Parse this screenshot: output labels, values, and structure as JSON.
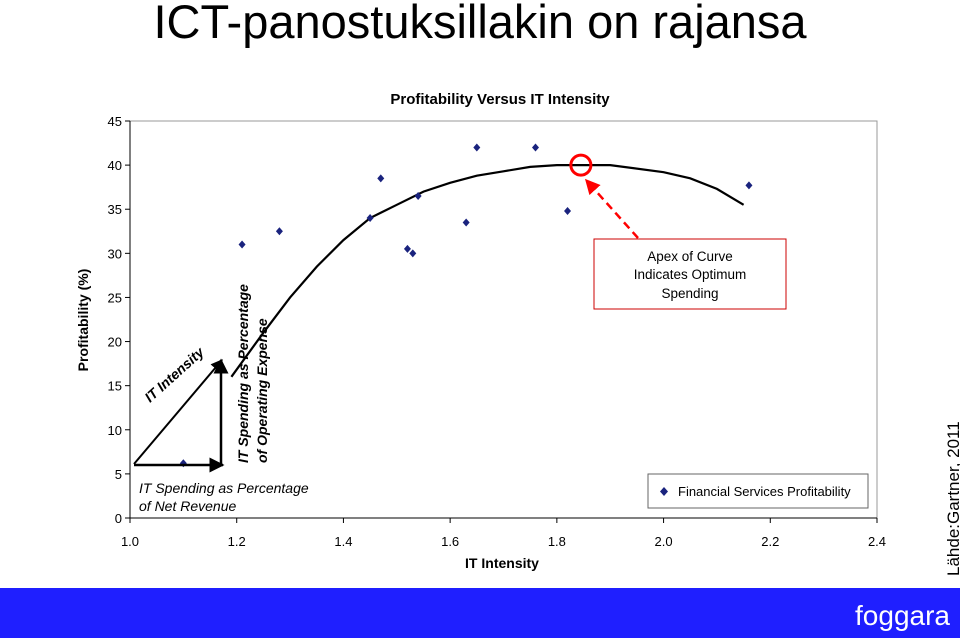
{
  "slide": {
    "title": "ICT-panostuksillakin on rajansa",
    "source": "Lähde:Gartner, 2011",
    "brand": "foggara"
  },
  "colors": {
    "footer_bar": "#1f1fff",
    "marker": "#1a237e",
    "apex_highlight": "#ff0000"
  },
  "chart_data": {
    "type": "scatter",
    "title": "Profitability Versus IT Intensity",
    "xlabel": "IT Intensity",
    "ylabel": "Profitability (%)",
    "xlim": [
      1.0,
      2.4
    ],
    "ylim": [
      0,
      45
    ],
    "x_ticks": [
      "1.0",
      "1.2",
      "1.4",
      "1.6",
      "1.8",
      "2.0",
      "2.2",
      "2.4"
    ],
    "y_ticks": [
      "0",
      "5",
      "10",
      "15",
      "20",
      "25",
      "30",
      "35",
      "40",
      "45"
    ],
    "grid": false,
    "legend_position": "bottom-right",
    "series": [
      {
        "name": "Financial Services Profitability",
        "marker": "diamond",
        "points": [
          {
            "x": 1.1,
            "y": 6.2
          },
          {
            "x": 1.21,
            "y": 31.0
          },
          {
            "x": 1.28,
            "y": 32.5
          },
          {
            "x": 1.45,
            "y": 34.0
          },
          {
            "x": 1.47,
            "y": 38.5
          },
          {
            "x": 1.52,
            "y": 30.5
          },
          {
            "x": 1.53,
            "y": 30.0
          },
          {
            "x": 1.54,
            "y": 36.5
          },
          {
            "x": 1.63,
            "y": 33.5
          },
          {
            "x": 1.65,
            "y": 42.0
          },
          {
            "x": 1.76,
            "y": 42.0
          },
          {
            "x": 1.82,
            "y": 34.8
          },
          {
            "x": 2.16,
            "y": 37.7
          }
        ]
      }
    ],
    "trend_curve": {
      "points": [
        {
          "x": 1.19,
          "y": 16.0
        },
        {
          "x": 1.25,
          "y": 21.0
        },
        {
          "x": 1.3,
          "y": 25.0
        },
        {
          "x": 1.35,
          "y": 28.5
        },
        {
          "x": 1.4,
          "y": 31.5
        },
        {
          "x": 1.45,
          "y": 34.0
        },
        {
          "x": 1.5,
          "y": 35.5
        },
        {
          "x": 1.55,
          "y": 37.0
        },
        {
          "x": 1.6,
          "y": 38.0
        },
        {
          "x": 1.65,
          "y": 38.8
        },
        {
          "x": 1.7,
          "y": 39.3
        },
        {
          "x": 1.75,
          "y": 39.8
        },
        {
          "x": 1.8,
          "y": 40.0
        },
        {
          "x": 1.9,
          "y": 40.0
        },
        {
          "x": 2.0,
          "y": 39.2
        },
        {
          "x": 2.05,
          "y": 38.5
        },
        {
          "x": 2.1,
          "y": 37.3
        },
        {
          "x": 2.15,
          "y": 35.5
        }
      ]
    },
    "apex": {
      "x": 1.845,
      "y": 40.0
    },
    "annotations": {
      "apex_lines": [
        "Apex of Curve",
        "Indicates Optimum",
        "Spending"
      ],
      "it_intensity": "IT Intensity",
      "vertical_lines": [
        "IT Spending as Percentage",
        "of Operating Expense"
      ],
      "horizontal_lines": [
        "IT Spending as Percentage",
        "of Net Revenue"
      ]
    }
  }
}
